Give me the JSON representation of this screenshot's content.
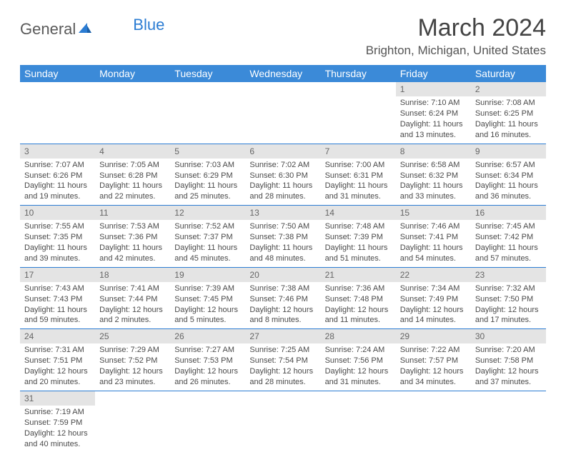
{
  "logo": {
    "text1": "General",
    "text2": "Blue"
  },
  "title": "March 2024",
  "location": "Brighton, Michigan, United States",
  "colors": {
    "header_bg": "#3b8ad8",
    "header_fg": "#ffffff",
    "daynum_bg": "#e4e4e4",
    "rule": "#2b7cd3",
    "text": "#4a4a4a",
    "title": "#444444"
  },
  "weekdays": [
    "Sunday",
    "Monday",
    "Tuesday",
    "Wednesday",
    "Thursday",
    "Friday",
    "Saturday"
  ],
  "weeks": [
    [
      null,
      null,
      null,
      null,
      null,
      {
        "n": "1",
        "sr": "7:10 AM",
        "ss": "6:24 PM",
        "dl": "11 hours and 13 minutes."
      },
      {
        "n": "2",
        "sr": "7:08 AM",
        "ss": "6:25 PM",
        "dl": "11 hours and 16 minutes."
      }
    ],
    [
      {
        "n": "3",
        "sr": "7:07 AM",
        "ss": "6:26 PM",
        "dl": "11 hours and 19 minutes."
      },
      {
        "n": "4",
        "sr": "7:05 AM",
        "ss": "6:28 PM",
        "dl": "11 hours and 22 minutes."
      },
      {
        "n": "5",
        "sr": "7:03 AM",
        "ss": "6:29 PM",
        "dl": "11 hours and 25 minutes."
      },
      {
        "n": "6",
        "sr": "7:02 AM",
        "ss": "6:30 PM",
        "dl": "11 hours and 28 minutes."
      },
      {
        "n": "7",
        "sr": "7:00 AM",
        "ss": "6:31 PM",
        "dl": "11 hours and 31 minutes."
      },
      {
        "n": "8",
        "sr": "6:58 AM",
        "ss": "6:32 PM",
        "dl": "11 hours and 33 minutes."
      },
      {
        "n": "9",
        "sr": "6:57 AM",
        "ss": "6:34 PM",
        "dl": "11 hours and 36 minutes."
      }
    ],
    [
      {
        "n": "10",
        "sr": "7:55 AM",
        "ss": "7:35 PM",
        "dl": "11 hours and 39 minutes."
      },
      {
        "n": "11",
        "sr": "7:53 AM",
        "ss": "7:36 PM",
        "dl": "11 hours and 42 minutes."
      },
      {
        "n": "12",
        "sr": "7:52 AM",
        "ss": "7:37 PM",
        "dl": "11 hours and 45 minutes."
      },
      {
        "n": "13",
        "sr": "7:50 AM",
        "ss": "7:38 PM",
        "dl": "11 hours and 48 minutes."
      },
      {
        "n": "14",
        "sr": "7:48 AM",
        "ss": "7:39 PM",
        "dl": "11 hours and 51 minutes."
      },
      {
        "n": "15",
        "sr": "7:46 AM",
        "ss": "7:41 PM",
        "dl": "11 hours and 54 minutes."
      },
      {
        "n": "16",
        "sr": "7:45 AM",
        "ss": "7:42 PM",
        "dl": "11 hours and 57 minutes."
      }
    ],
    [
      {
        "n": "17",
        "sr": "7:43 AM",
        "ss": "7:43 PM",
        "dl": "11 hours and 59 minutes."
      },
      {
        "n": "18",
        "sr": "7:41 AM",
        "ss": "7:44 PM",
        "dl": "12 hours and 2 minutes."
      },
      {
        "n": "19",
        "sr": "7:39 AM",
        "ss": "7:45 PM",
        "dl": "12 hours and 5 minutes."
      },
      {
        "n": "20",
        "sr": "7:38 AM",
        "ss": "7:46 PM",
        "dl": "12 hours and 8 minutes."
      },
      {
        "n": "21",
        "sr": "7:36 AM",
        "ss": "7:48 PM",
        "dl": "12 hours and 11 minutes."
      },
      {
        "n": "22",
        "sr": "7:34 AM",
        "ss": "7:49 PM",
        "dl": "12 hours and 14 minutes."
      },
      {
        "n": "23",
        "sr": "7:32 AM",
        "ss": "7:50 PM",
        "dl": "12 hours and 17 minutes."
      }
    ],
    [
      {
        "n": "24",
        "sr": "7:31 AM",
        "ss": "7:51 PM",
        "dl": "12 hours and 20 minutes."
      },
      {
        "n": "25",
        "sr": "7:29 AM",
        "ss": "7:52 PM",
        "dl": "12 hours and 23 minutes."
      },
      {
        "n": "26",
        "sr": "7:27 AM",
        "ss": "7:53 PM",
        "dl": "12 hours and 26 minutes."
      },
      {
        "n": "27",
        "sr": "7:25 AM",
        "ss": "7:54 PM",
        "dl": "12 hours and 28 minutes."
      },
      {
        "n": "28",
        "sr": "7:24 AM",
        "ss": "7:56 PM",
        "dl": "12 hours and 31 minutes."
      },
      {
        "n": "29",
        "sr": "7:22 AM",
        "ss": "7:57 PM",
        "dl": "12 hours and 34 minutes."
      },
      {
        "n": "30",
        "sr": "7:20 AM",
        "ss": "7:58 PM",
        "dl": "12 hours and 37 minutes."
      }
    ],
    [
      {
        "n": "31",
        "sr": "7:19 AM",
        "ss": "7:59 PM",
        "dl": "12 hours and 40 minutes."
      },
      null,
      null,
      null,
      null,
      null,
      null
    ]
  ],
  "labels": {
    "sunrise": "Sunrise:",
    "sunset": "Sunset:",
    "daylight": "Daylight:"
  }
}
